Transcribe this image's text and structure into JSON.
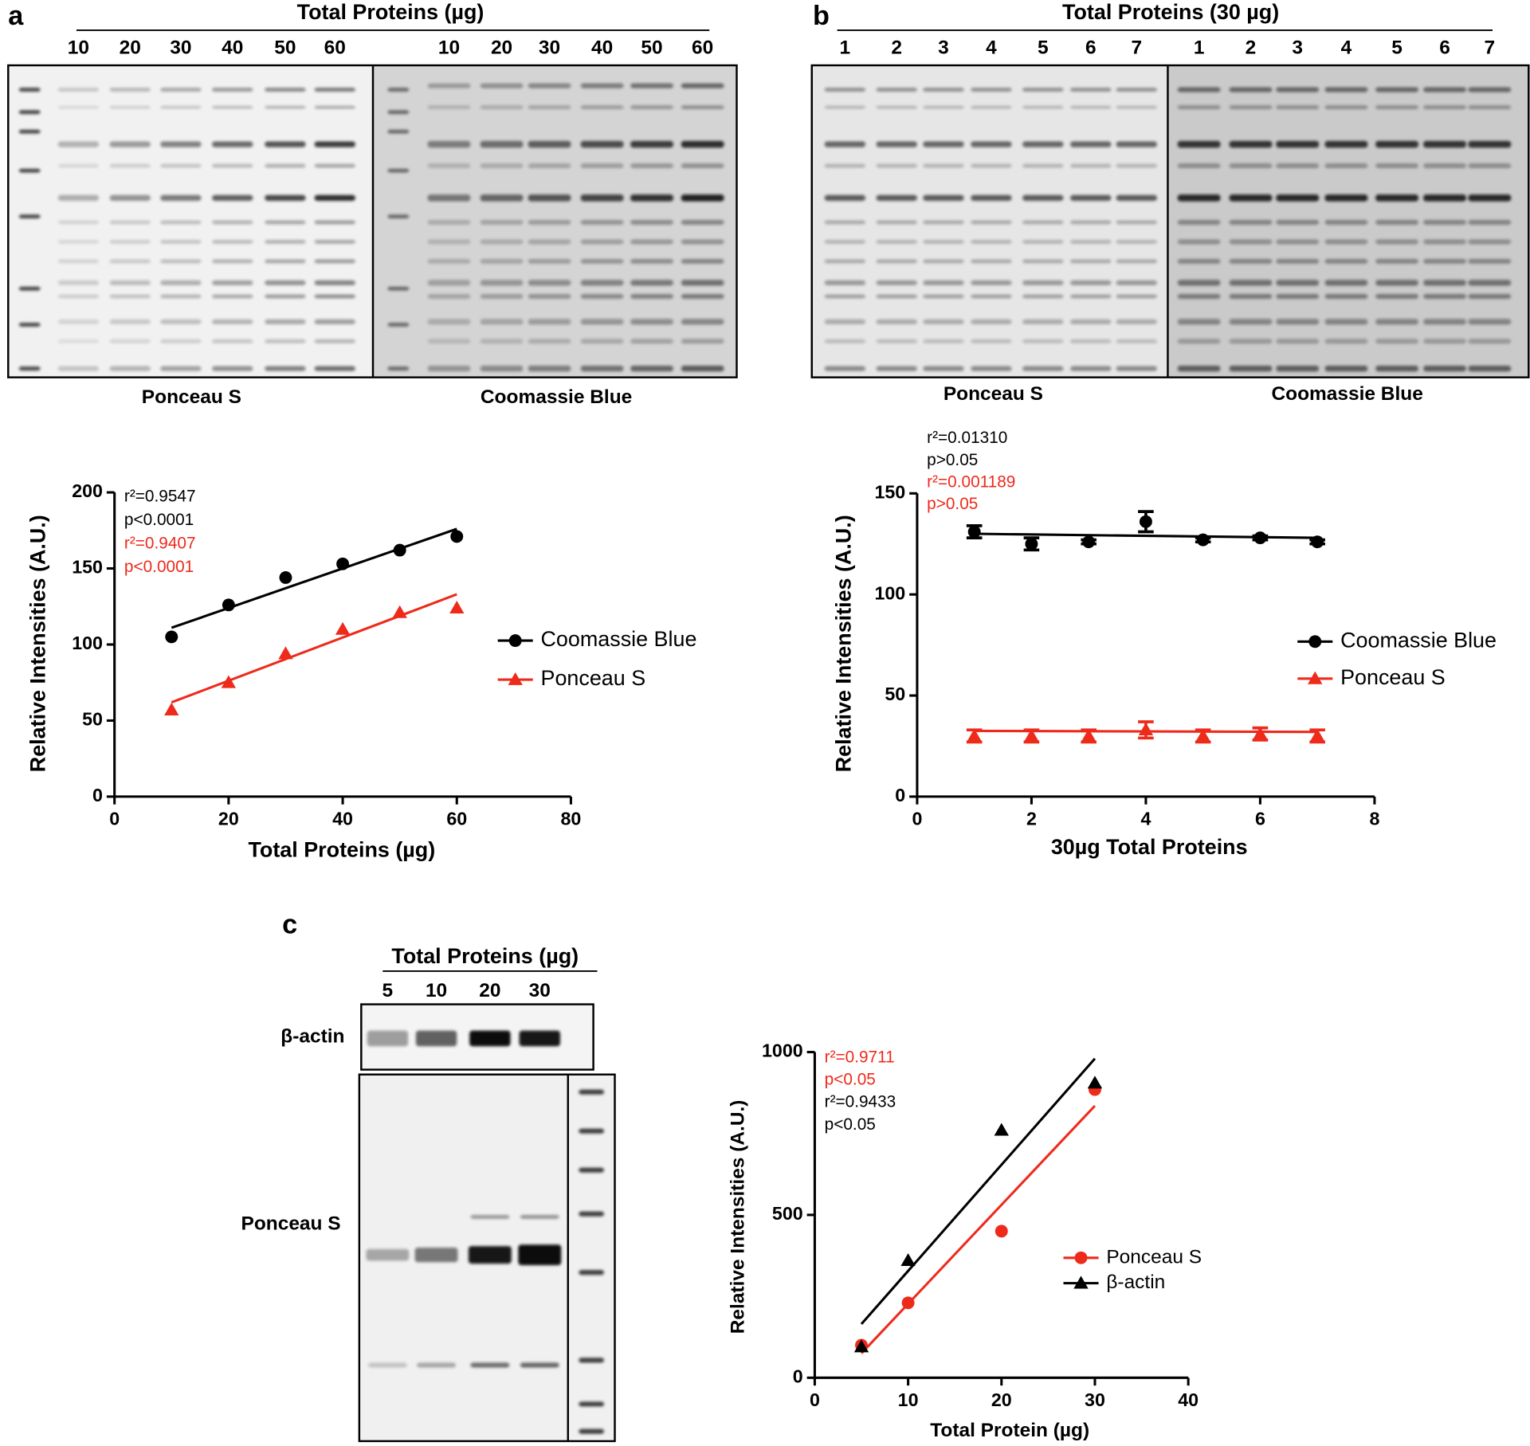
{
  "figure": {
    "panel_labels": [
      "a",
      "b",
      "c"
    ],
    "gel_a": {
      "title": "Total Proteins (µg)",
      "lanes": [
        "10",
        "20",
        "30",
        "40",
        "50",
        "60",
        "10",
        "20",
        "30",
        "40",
        "50",
        "60"
      ],
      "stains": [
        "Ponceau S",
        "Coomassie Blue"
      ]
    },
    "gel_b": {
      "title": "Total Proteins (30 µg)",
      "lanes": [
        "1",
        "2",
        "3",
        "4",
        "5",
        "6",
        "7",
        "1",
        "2",
        "3",
        "4",
        "5",
        "6",
        "7"
      ],
      "stains": [
        "Ponceau S",
        "Coomassie Blue"
      ]
    },
    "gel_c": {
      "title": "Total Proteins (µg)",
      "lanes": [
        "5",
        "10",
        "20",
        "30"
      ],
      "rows": [
        "β-actin",
        "Ponceau S"
      ]
    }
  },
  "chart_data": [
    {
      "type": "scatter",
      "x_label": "Total Proteins (µg)",
      "y_label": "Relative Intensities (A.U.)",
      "xlim": [
        0,
        80
      ],
      "xticks": [
        0,
        20,
        40,
        60,
        80
      ],
      "ylim": [
        0,
        200
      ],
      "yticks": [
        0,
        50,
        100,
        150,
        200
      ],
      "x": [
        10,
        20,
        30,
        40,
        50,
        60
      ],
      "series": [
        {
          "name": "Coomassie Blue",
          "color": "#000000",
          "marker": "circle",
          "values": [
            105,
            126,
            144,
            153,
            162,
            171
          ],
          "fit": {
            "x": [
              10,
              60
            ],
            "y": [
              111,
              176
            ]
          }
        },
        {
          "name": "Ponceau S",
          "color": "#ee2a1b",
          "marker": "triangle",
          "values": [
            57,
            75,
            94,
            110,
            121,
            124
          ],
          "fit": {
            "x": [
              10,
              60
            ],
            "y": [
              62,
              133
            ]
          }
        }
      ],
      "annotations": [
        {
          "text": "r²=0.9547",
          "color": "#000000"
        },
        {
          "text": "p<0.0001",
          "color": "#000000"
        },
        {
          "text": "r²=0.9407",
          "color": "#ee2a1b"
        },
        {
          "text": "p<0.0001",
          "color": "#ee2a1b"
        }
      ]
    },
    {
      "type": "scatter",
      "x_label": "30µg Total Proteins",
      "y_label": "Relative Intensities (A.U.)",
      "xlim": [
        0,
        8
      ],
      "xticks": [
        0,
        2,
        4,
        6,
        8
      ],
      "ylim": [
        0,
        150
      ],
      "yticks": [
        0,
        50,
        100,
        150
      ],
      "x": [
        1,
        2,
        3,
        4,
        5,
        6,
        7
      ],
      "series": [
        {
          "name": "Coomassie Blue",
          "color": "#000000",
          "marker": "circle",
          "values": [
            131,
            125,
            126,
            136,
            127,
            128,
            126
          ],
          "errors": [
            3,
            3,
            1,
            5,
            1,
            1,
            1
          ],
          "fit": {
            "x": [
              1,
              7
            ],
            "y": [
              130,
              128
            ]
          }
        },
        {
          "name": "Ponceau S",
          "color": "#ee2a1b",
          "marker": "triangle",
          "values": [
            30,
            30,
            30,
            33,
            30,
            31,
            30
          ],
          "errors": [
            3,
            3,
            3,
            4,
            3,
            3,
            3
          ],
          "fit": {
            "x": [
              1,
              7
            ],
            "y": [
              32.5,
              32
            ]
          }
        }
      ],
      "annotations": [
        {
          "text": "r²=0.01310",
          "color": "#000000"
        },
        {
          "text": "p>0.05",
          "color": "#000000"
        },
        {
          "text": "r²=0.001189",
          "color": "#ee2a1b"
        },
        {
          "text": "p>0.05",
          "color": "#ee2a1b"
        }
      ]
    },
    {
      "type": "scatter",
      "x_label": "Total Protein (µg)",
      "y_label": "Relative Intensities (A.U.)",
      "xlim": [
        0,
        40
      ],
      "xticks": [
        0,
        10,
        20,
        30,
        40
      ],
      "ylim": [
        0,
        1000
      ],
      "yticks": [
        0,
        500,
        1000
      ],
      "x": [
        5,
        10,
        20,
        30
      ],
      "series": [
        {
          "name": "Ponceau S",
          "color": "#ee2a1b",
          "marker": "circle",
          "values": [
            100,
            230,
            450,
            885
          ],
          "fit": {
            "x": [
              5,
              30
            ],
            "y": [
              75,
              835
            ]
          }
        },
        {
          "name": "β-actin",
          "color": "#000000",
          "marker": "triangle",
          "values": [
            95,
            360,
            760,
            905
          ],
          "fit": {
            "x": [
              5,
              30
            ],
            "y": [
              165,
              980
            ]
          }
        }
      ],
      "annotations": [
        {
          "text": "r²=0.9711",
          "color": "#ee2a1b"
        },
        {
          "text": "p<0.05",
          "color": "#ee2a1b"
        },
        {
          "text": "r²=0.9433",
          "color": "#000000"
        },
        {
          "text": "p<0.05",
          "color": "#000000"
        }
      ]
    }
  ]
}
